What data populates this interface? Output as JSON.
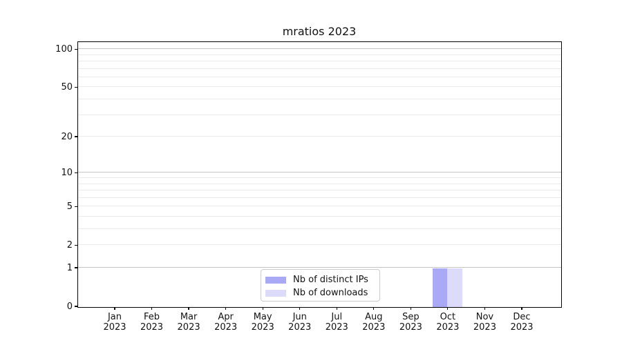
{
  "title": "mratios 2023",
  "chart_data": {
    "type": "bar",
    "title": "mratios 2023",
    "categories": [
      "Jan 2023",
      "Feb 2023",
      "Mar 2023",
      "Apr 2023",
      "May 2023",
      "Jun 2023",
      "Jul 2023",
      "Aug 2023",
      "Sep 2023",
      "Oct 2023",
      "Nov 2023",
      "Dec 2023"
    ],
    "series": [
      {
        "name": "Nb of distinct IPs",
        "color": "#a9a9f5",
        "values": [
          0,
          0,
          0,
          0,
          0,
          0,
          0,
          0,
          0,
          1,
          0,
          0
        ]
      },
      {
        "name": "Nb of downloads",
        "color": "#dcdcfa",
        "values": [
          0,
          0,
          0,
          0,
          0,
          0,
          0,
          0,
          0,
          1,
          0,
          0
        ]
      }
    ],
    "xlabel": "",
    "ylabel": "",
    "yscale": "log1p",
    "ylim": [
      0,
      110
    ],
    "y_tick_values": [
      0,
      1,
      2,
      5,
      10,
      20,
      50,
      100
    ],
    "y_minor_tick_values": [
      3,
      4,
      6,
      7,
      8,
      9,
      30,
      40,
      60,
      70,
      80,
      90
    ],
    "grid": "horizontal, major and minor",
    "legend_position": "lower center",
    "colors": {
      "grid_major": "#c4c4c4",
      "grid_minor": "#eaeaea",
      "spine": "#000000",
      "background": "#ffffff"
    }
  }
}
